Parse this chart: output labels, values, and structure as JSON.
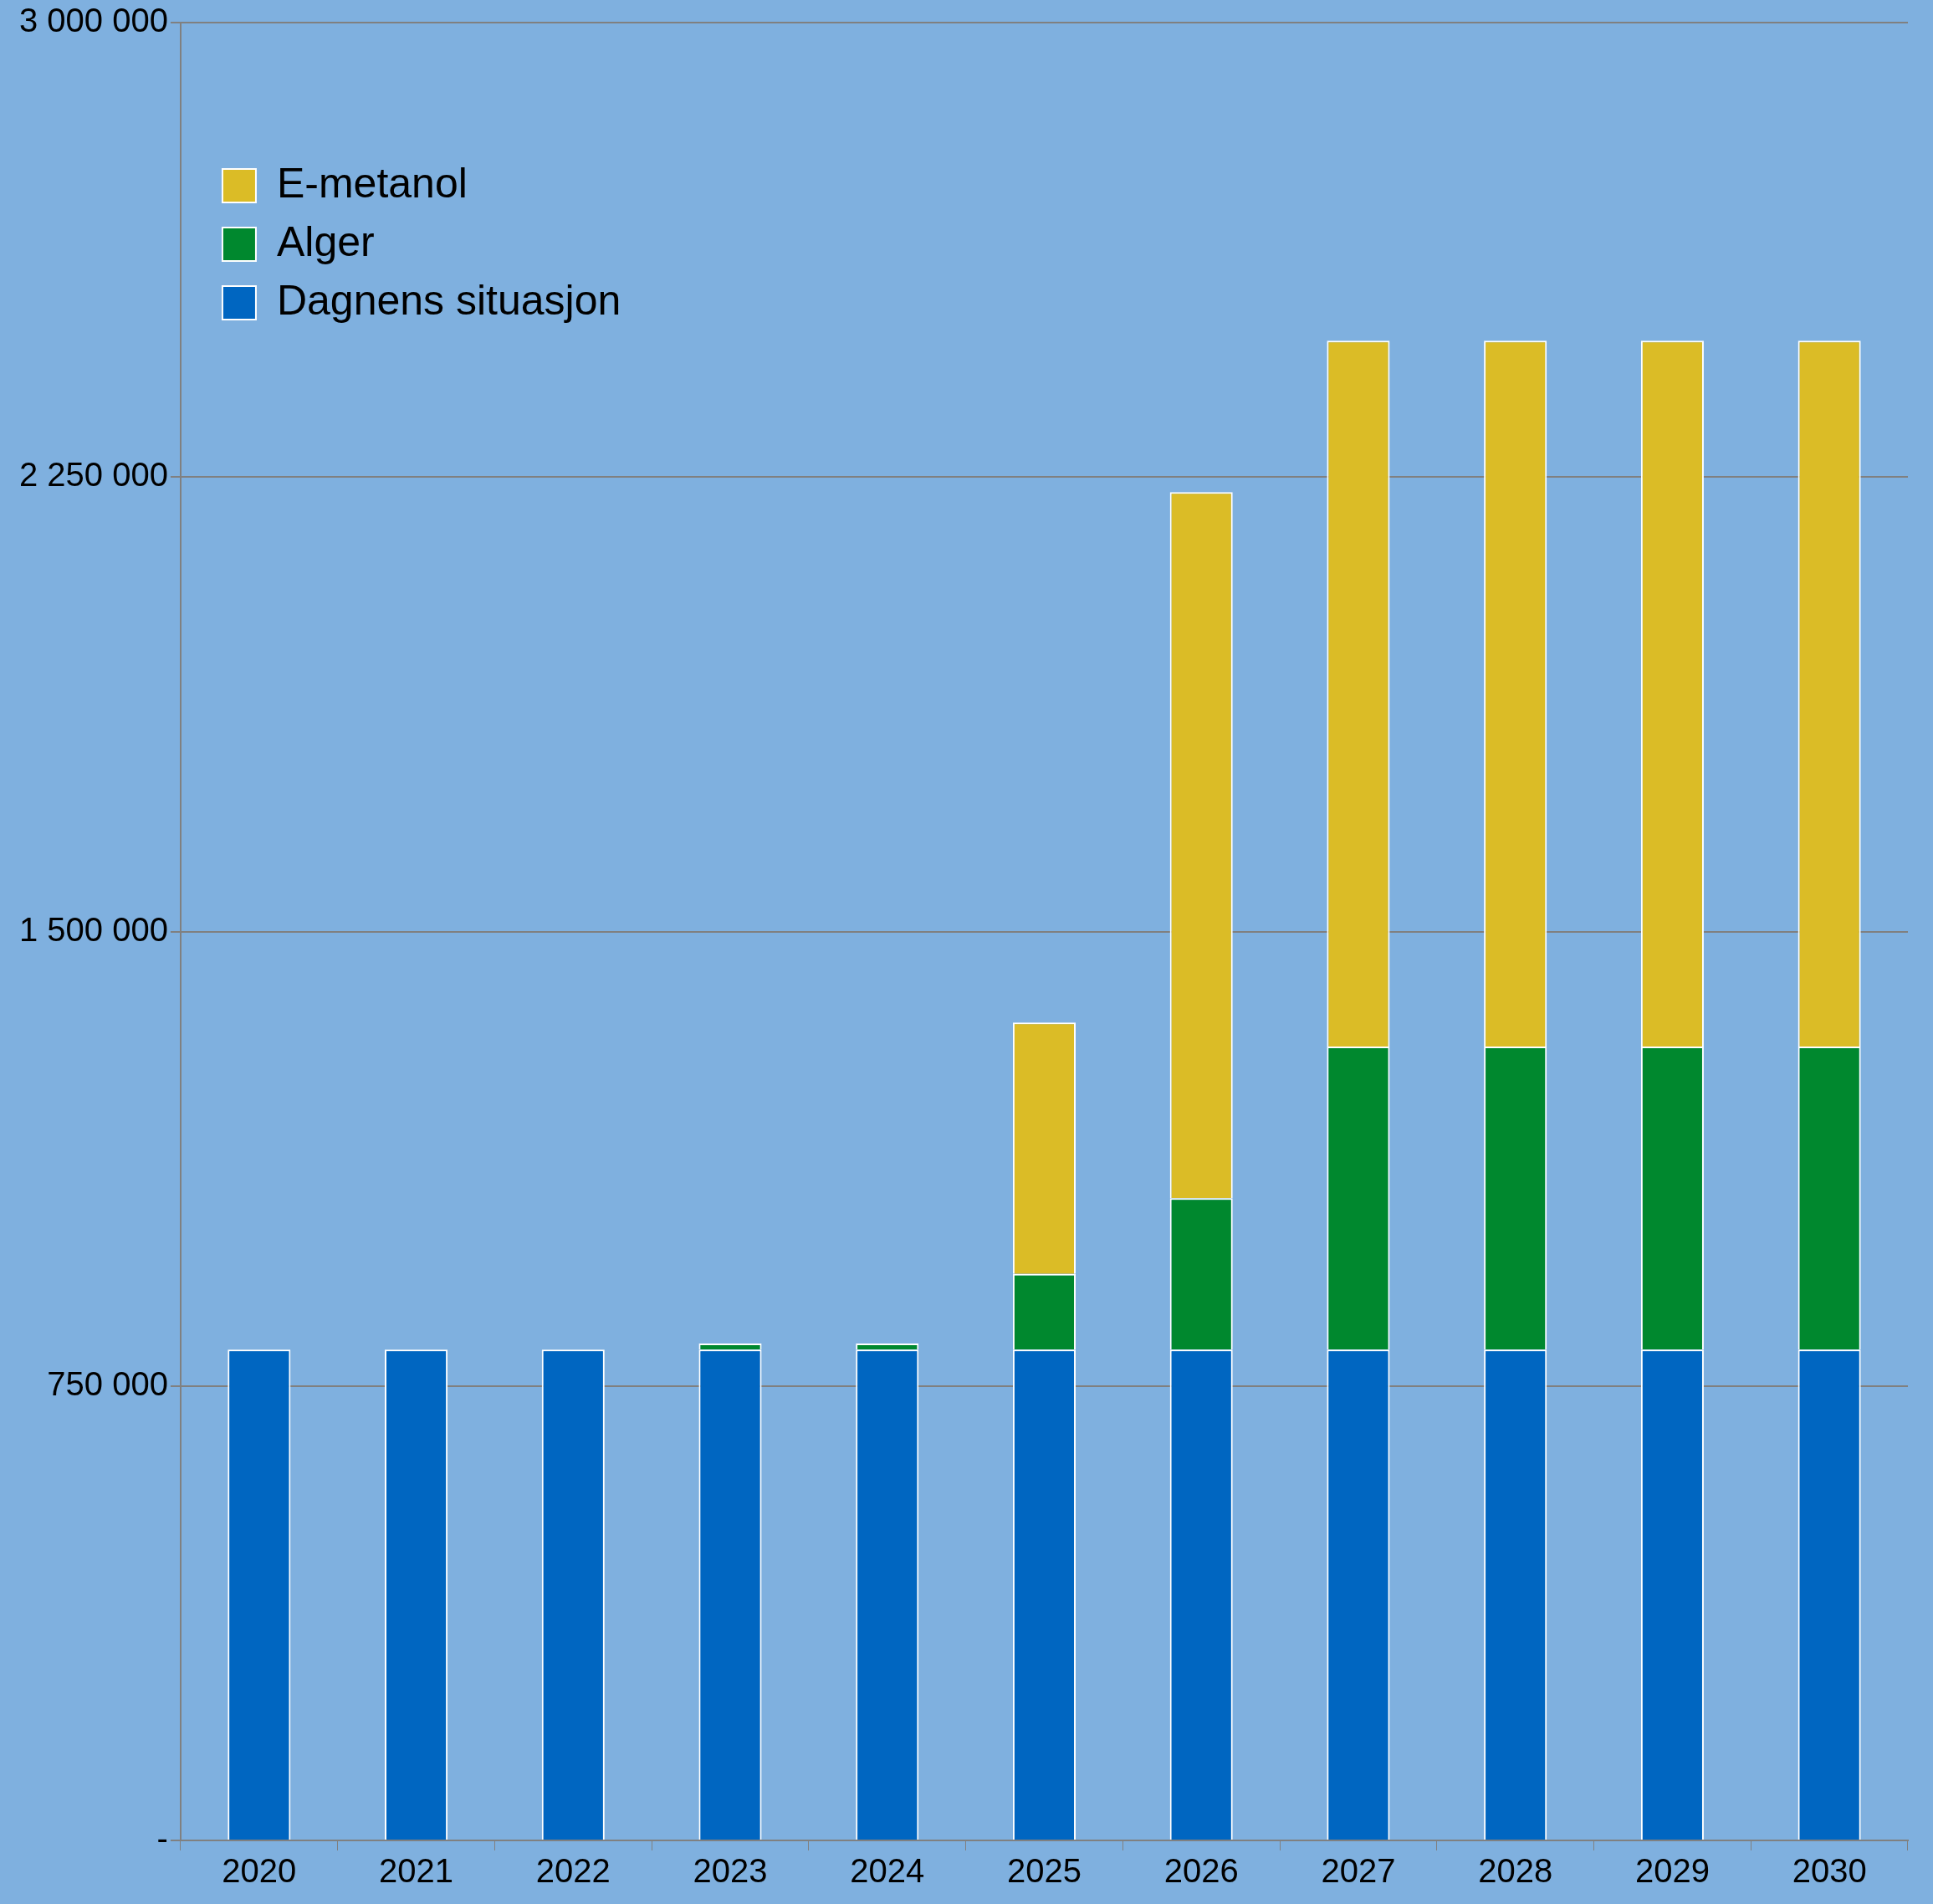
{
  "chart_data": {
    "type": "bar",
    "stacked": true,
    "categories": [
      "2020",
      "2021",
      "2022",
      "2023",
      "2024",
      "2025",
      "2026",
      "2027",
      "2028",
      "2029",
      "2030"
    ],
    "series": [
      {
        "name": "Dagnens situasjon",
        "color": "#0066c1",
        "values": [
          810000,
          810000,
          810000,
          810000,
          810000,
          810000,
          810000,
          810000,
          810000,
          810000,
          810000
        ]
      },
      {
        "name": "Alger",
        "color": "#00882e",
        "values": [
          null,
          null,
          null,
          10000,
          10000,
          125000,
          250000,
          500000,
          500000,
          500000,
          500000
        ]
      },
      {
        "name": "E-metanol",
        "color": "#dbbc26",
        "values": [
          null,
          null,
          null,
          null,
          null,
          415000,
          1165000,
          1165000,
          1165000,
          1165000,
          1165000
        ]
      }
    ],
    "ylim": [
      0,
      3000000
    ],
    "yticks": [
      {
        "value": 0,
        "label": "-"
      },
      {
        "value": 750000,
        "label": "750 000"
      },
      {
        "value": 1500000,
        "label": "1 500 000"
      },
      {
        "value": 2250000,
        "label": "2 250 000"
      },
      {
        "value": 3000000,
        "label": "3 000 000"
      }
    ],
    "grid": "y",
    "legend": "top left"
  }
}
